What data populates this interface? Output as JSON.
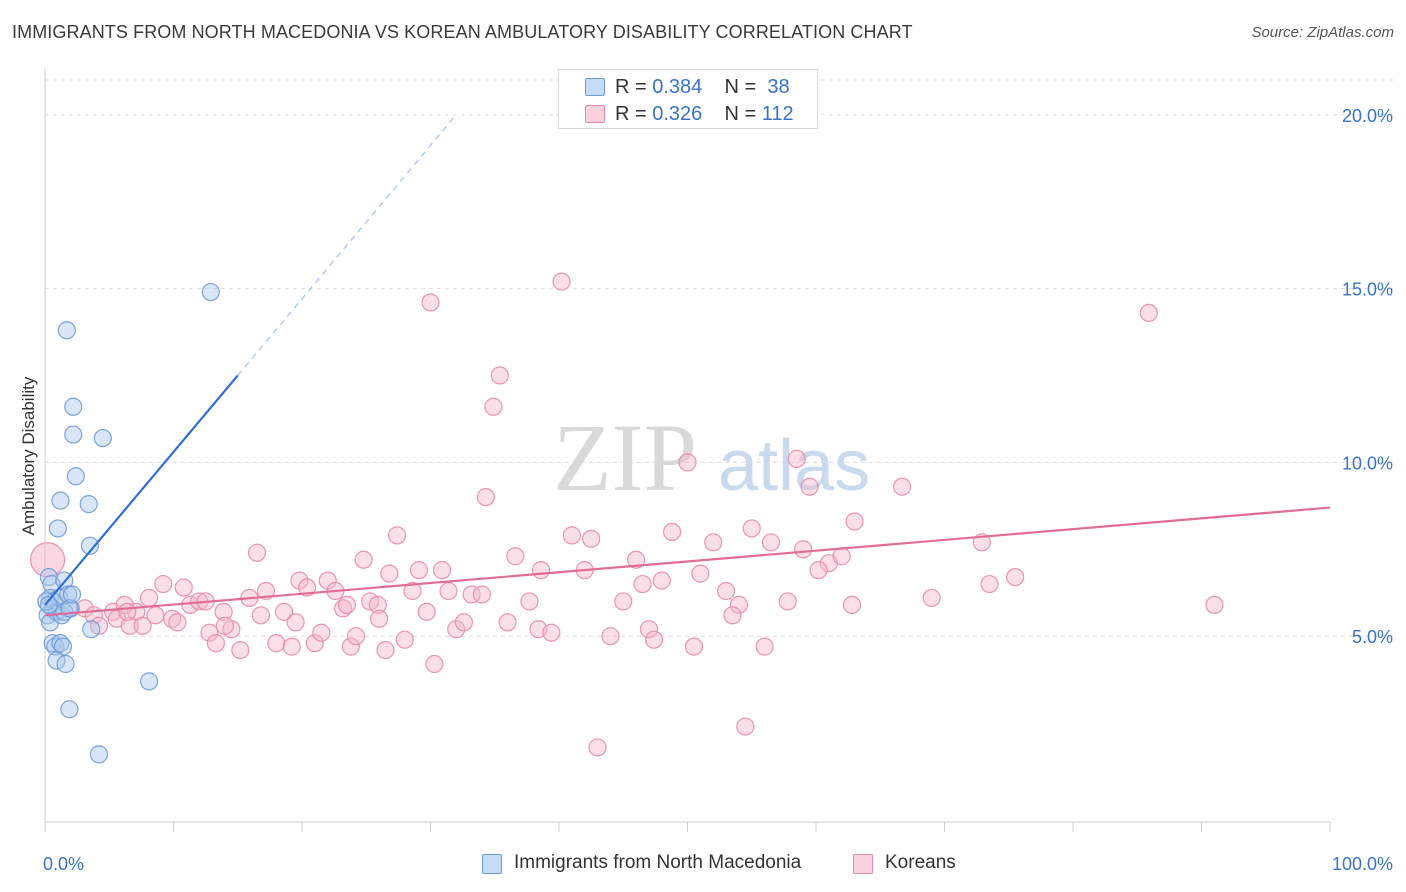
{
  "title": "IMMIGRANTS FROM NORTH MACEDONIA VS KOREAN AMBULATORY DISABILITY CORRELATION CHART",
  "source": "Source: ZipAtlas.com",
  "watermark": {
    "zip": "ZIP",
    "atlas": "atlas"
  },
  "legend_top": {
    "r_label": "R =",
    "n_label": "N =",
    "rows": [
      {
        "r": "0.384",
        "n": "38"
      },
      {
        "r": "0.326",
        "n": "112"
      }
    ]
  },
  "colors": {
    "blue_fill": "#a9c8ee",
    "blue_stroke": "#6f9ad8",
    "blue_line": "#2f6fd1",
    "pink_fill": "#f5b8cc",
    "pink_stroke": "#e88aaa",
    "pink_line": "#e06c98",
    "accent_text": "#3a73c6",
    "grid": "#dcdcdc"
  },
  "chart_data": {
    "type": "scatter",
    "title": "IMMIGRANTS FROM NORTH MACEDONIA VS KOREAN AMBULATORY DISABILITY CORRELATION CHART",
    "xlabel": "",
    "ylabel": "Ambulatory Disability",
    "xlim": [
      0,
      100
    ],
    "ylim": [
      0,
      21
    ],
    "x_tick_labels": [
      "0.0%",
      "100.0%"
    ],
    "y_ticks": [
      5,
      10,
      15,
      20
    ],
    "y_tick_labels": [
      "5.0%",
      "10.0%",
      "15.0%",
      "20.0%"
    ],
    "grid": "horizontal dashed",
    "legend": "top-center",
    "series": [
      {
        "name": "Immigrants from North Macedonia",
        "r": 0.384,
        "n": 38,
        "trend": {
          "x0": 0,
          "y0": 5.9,
          "x1": 15,
          "y1": 12.5,
          "dashed_to": {
            "x": 32,
            "y": 20
          }
        },
        "points": [
          [
            0.3,
            6.7
          ],
          [
            0.5,
            6.5
          ],
          [
            0.4,
            6.1
          ],
          [
            0.6,
            5.8
          ],
          [
            0.2,
            5.6
          ],
          [
            0.4,
            5.4
          ],
          [
            0.7,
            6.0
          ],
          [
            0.9,
            5.7
          ],
          [
            1.1,
            6.1
          ],
          [
            1.3,
            5.6
          ],
          [
            1.5,
            6.6
          ],
          [
            1.8,
            6.2
          ],
          [
            2.0,
            5.8
          ],
          [
            1.5,
            5.7
          ],
          [
            0.6,
            4.8
          ],
          [
            0.8,
            4.7
          ],
          [
            1.2,
            4.8
          ],
          [
            1.4,
            4.7
          ],
          [
            0.9,
            4.3
          ],
          [
            1.6,
            4.2
          ],
          [
            1.9,
            5.8
          ],
          [
            2.1,
            6.2
          ],
          [
            3.6,
            5.2
          ],
          [
            1.7,
            13.8
          ],
          [
            2.2,
            11.6
          ],
          [
            2.2,
            10.8
          ],
          [
            2.4,
            9.6
          ],
          [
            1.2,
            8.9
          ],
          [
            1.0,
            8.1
          ],
          [
            3.4,
            8.8
          ],
          [
            3.5,
            7.6
          ],
          [
            4.5,
            10.7
          ],
          [
            12.9,
            14.9
          ],
          [
            8.1,
            3.7
          ],
          [
            1.9,
            2.9
          ],
          [
            4.2,
            1.6
          ],
          [
            0.1,
            6.0
          ],
          [
            0.3,
            5.9
          ]
        ]
      },
      {
        "name": "Koreans",
        "r": 0.326,
        "n": 112,
        "trend": {
          "x0": 0,
          "y0": 5.6,
          "x1": 100,
          "y1": 8.7
        },
        "points": [
          [
            0.2,
            7.2
          ],
          [
            3.1,
            5.8
          ],
          [
            3.8,
            5.6
          ],
          [
            4.2,
            5.3
          ],
          [
            5.3,
            5.7
          ],
          [
            5.6,
            5.5
          ],
          [
            6.2,
            5.9
          ],
          [
            6.6,
            5.3
          ],
          [
            7.1,
            5.7
          ],
          [
            7.6,
            5.3
          ],
          [
            8.1,
            6.1
          ],
          [
            8.6,
            5.6
          ],
          [
            9.2,
            6.5
          ],
          [
            9.9,
            5.5
          ],
          [
            10.3,
            5.4
          ],
          [
            10.8,
            6.4
          ],
          [
            11.3,
            5.9
          ],
          [
            12.0,
            6.0
          ],
          [
            12.8,
            5.1
          ],
          [
            13.3,
            4.8
          ],
          [
            13.9,
            5.7
          ],
          [
            14.5,
            5.2
          ],
          [
            15.2,
            4.6
          ],
          [
            15.9,
            6.1
          ],
          [
            16.5,
            7.4
          ],
          [
            16.8,
            5.6
          ],
          [
            17.2,
            6.3
          ],
          [
            18.0,
            4.8
          ],
          [
            18.6,
            5.7
          ],
          [
            19.2,
            4.7
          ],
          [
            19.8,
            6.6
          ],
          [
            20.4,
            6.4
          ],
          [
            21.0,
            4.8
          ],
          [
            21.5,
            5.1
          ],
          [
            22.0,
            6.6
          ],
          [
            22.6,
            6.3
          ],
          [
            23.2,
            5.8
          ],
          [
            23.8,
            4.7
          ],
          [
            24.2,
            5.0
          ],
          [
            24.8,
            7.2
          ],
          [
            25.3,
            6.0
          ],
          [
            25.9,
            5.9
          ],
          [
            26.5,
            4.6
          ],
          [
            26.8,
            6.8
          ],
          [
            27.4,
            7.9
          ],
          [
            28.0,
            4.9
          ],
          [
            28.6,
            6.3
          ],
          [
            29.1,
            6.9
          ],
          [
            29.7,
            5.7
          ],
          [
            30.3,
            4.2
          ],
          [
            30.9,
            6.9
          ],
          [
            31.4,
            6.3
          ],
          [
            32.0,
            5.2
          ],
          [
            32.6,
            5.4
          ],
          [
            33.2,
            6.2
          ],
          [
            30.0,
            14.6
          ],
          [
            34.3,
            9.0
          ],
          [
            34.0,
            6.2
          ],
          [
            34.9,
            11.6
          ],
          [
            35.4,
            12.5
          ],
          [
            36.0,
            5.4
          ],
          [
            36.6,
            7.3
          ],
          [
            37.7,
            6.0
          ],
          [
            38.4,
            5.2
          ],
          [
            38.6,
            6.9
          ],
          [
            39.4,
            5.1
          ],
          [
            40.2,
            15.2
          ],
          [
            41.0,
            7.9
          ],
          [
            42.0,
            6.9
          ],
          [
            42.5,
            7.8
          ],
          [
            43.0,
            1.8
          ],
          [
            45.0,
            6.0
          ],
          [
            46.0,
            7.2
          ],
          [
            47.0,
            5.2
          ],
          [
            47.4,
            4.9
          ],
          [
            48.0,
            6.6
          ],
          [
            48.8,
            8.0
          ],
          [
            50.0,
            10.0
          ],
          [
            50.5,
            4.7
          ],
          [
            51.0,
            6.8
          ],
          [
            52.0,
            7.7
          ],
          [
            53.0,
            6.3
          ],
          [
            54.0,
            5.9
          ],
          [
            54.5,
            2.4
          ],
          [
            55.0,
            8.1
          ],
          [
            56.0,
            4.7
          ],
          [
            56.5,
            7.7
          ],
          [
            57.8,
            6.0
          ],
          [
            58.5,
            10.1
          ],
          [
            59.0,
            7.5
          ],
          [
            59.5,
            9.3
          ],
          [
            61.0,
            7.1
          ],
          [
            62.0,
            7.3
          ],
          [
            62.8,
            5.9
          ],
          [
            63.0,
            8.3
          ],
          [
            66.7,
            9.3
          ],
          [
            72.9,
            7.7
          ],
          [
            73.5,
            6.5
          ],
          [
            75.5,
            6.7
          ],
          [
            85.9,
            14.3
          ],
          [
            91.0,
            5.9
          ],
          [
            12.5,
            6.0
          ],
          [
            6.4,
            5.7
          ],
          [
            14.0,
            5.3
          ],
          [
            19.5,
            5.4
          ],
          [
            26.0,
            5.5
          ],
          [
            44.0,
            5.0
          ],
          [
            60.2,
            6.9
          ],
          [
            69.0,
            6.1
          ],
          [
            46.5,
            6.5
          ],
          [
            53.5,
            5.6
          ],
          [
            23.5,
            5.9
          ]
        ]
      }
    ]
  }
}
